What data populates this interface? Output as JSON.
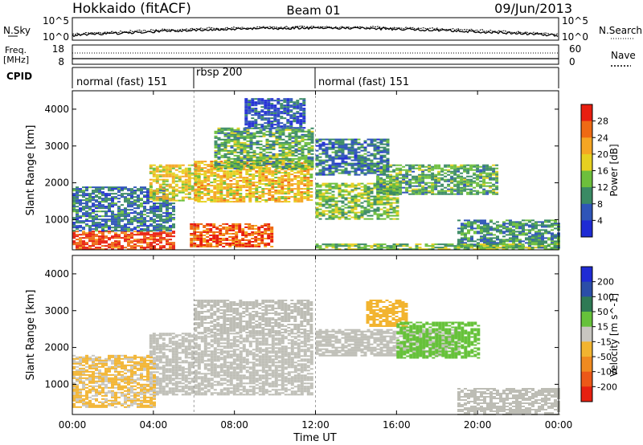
{
  "header": {
    "station": "Hokkaido (fitACF)",
    "beam": "Beam 01",
    "date": "09/Jun/2013"
  },
  "noise_panel": {
    "left_label": "N.Sky",
    "right_label": "N.Search",
    "left_ticks": [
      "10^5",
      "10^0"
    ],
    "right_ticks": [
      "10^5",
      "10^0"
    ]
  },
  "freq_panel": {
    "left_label_1": "Freq.",
    "left_label_2": "[MHz]",
    "right_label": "Nave",
    "left_ticks": [
      "18",
      "8"
    ],
    "right_ticks": [
      "60",
      "0"
    ]
  },
  "cpid_panel": {
    "label": "CPID",
    "modes": [
      {
        "name": "normal (fast) 151",
        "start_hour": 0,
        "end_hour": 6
      },
      {
        "name": "rbsp 200",
        "start_hour": 6,
        "end_hour": 12
      },
      {
        "name": "normal (fast) 151",
        "start_hour": 12,
        "end_hour": 24
      }
    ]
  },
  "x_axis": {
    "label": "Time UT",
    "range": [
      0,
      24
    ],
    "tick_labels": [
      "00:00",
      "04:00",
      "08:00",
      "12:00",
      "16:00",
      "20:00",
      "00:00"
    ]
  },
  "colors": {
    "power_scale": [
      "#1e2bd4",
      "#2f55b8",
      "#3a8a64",
      "#6dbf3c",
      "#e6d020",
      "#f5a623",
      "#ee6a14",
      "#e81e10"
    ],
    "velocity_scale": [
      "#1f2bd4",
      "#2b4ea8",
      "#2f7a55",
      "#66c23a",
      "#c8c6c0",
      "#f2b430",
      "#f08a20",
      "#ec5818",
      "#e62010"
    ],
    "ground_scatter": "#bdbdb5"
  },
  "chart_data": [
    {
      "type": "heatmap",
      "title": "",
      "xlabel": "Time UT",
      "ylabel": "Slant Range [km]",
      "xlim": [
        0,
        24
      ],
      "ylim": [
        180,
        4500
      ],
      "yticks": [
        1000,
        2000,
        3000,
        4000
      ],
      "colorbar_label": "Power [dB]",
      "colorbar_ticks": [
        4,
        8,
        12,
        16,
        20,
        24,
        28
      ],
      "colorbar_range": [
        0,
        32
      ],
      "echo_bands": [
        {
          "t0": 0.0,
          "t1": 5.0,
          "r0": 180,
          "r1": 700,
          "value": 28
        },
        {
          "t0": 0.0,
          "t1": 5.0,
          "r0": 700,
          "r1": 1900,
          "value": 8
        },
        {
          "t0": 3.8,
          "t1": 6.2,
          "r0": 1500,
          "r1": 2500,
          "value": 18
        },
        {
          "t0": 5.8,
          "t1": 9.8,
          "r0": 250,
          "r1": 900,
          "value": 27
        },
        {
          "t0": 6.0,
          "t1": 11.8,
          "r0": 1500,
          "r1": 2600,
          "value": 20
        },
        {
          "t0": 7.0,
          "t1": 11.8,
          "r0": 2400,
          "r1": 3500,
          "value": 12
        },
        {
          "t0": 8.5,
          "t1": 11.5,
          "r0": 3500,
          "r1": 4300,
          "value": 6
        },
        {
          "t0": 12.0,
          "t1": 16.0,
          "r0": 1000,
          "r1": 2000,
          "value": 14
        },
        {
          "t0": 12.0,
          "t1": 15.5,
          "r0": 2200,
          "r1": 3200,
          "value": 8
        },
        {
          "t0": 15.0,
          "t1": 21.0,
          "r0": 1700,
          "r1": 2500,
          "value": 12
        },
        {
          "t0": 19.0,
          "t1": 24.0,
          "r0": 250,
          "r1": 1000,
          "value": 10
        },
        {
          "t0": 12.0,
          "t1": 24.0,
          "r0": 180,
          "r1": 350,
          "value": 14
        }
      ]
    },
    {
      "type": "heatmap",
      "title": "",
      "xlabel": "Time UT",
      "ylabel": "Slant Range [km]",
      "xlim": [
        0,
        24
      ],
      "ylim": [
        180,
        4500
      ],
      "yticks": [
        1000,
        2000,
        3000,
        4000
      ],
      "colorbar_label": "Velocity [m s^-1]",
      "colorbar_ticks": [
        200,
        100,
        50,
        15,
        -15,
        -50,
        -100,
        -200
      ],
      "colorbar_range": [
        -250,
        250
      ],
      "echo_bands": [
        {
          "t0": 3.8,
          "t1": 11.8,
          "r0": 700,
          "r1": 2400,
          "value": 0
        },
        {
          "t0": 6.0,
          "t1": 11.8,
          "r0": 2400,
          "r1": 3300,
          "value": 0
        },
        {
          "t0": 12.0,
          "t1": 19.0,
          "r0": 1800,
          "r1": 2500,
          "value": 0
        },
        {
          "t0": 19.0,
          "t1": 24.0,
          "r0": 200,
          "r1": 900,
          "value": 0
        },
        {
          "t0": 14.5,
          "t1": 16.5,
          "r0": 2600,
          "r1": 3300,
          "value": -60
        },
        {
          "t0": 16.0,
          "t1": 20.0,
          "r0": 1700,
          "r1": 2700,
          "value": 40
        },
        {
          "t0": 0.0,
          "t1": 4.0,
          "r0": 400,
          "r1": 1800,
          "value": -30
        }
      ]
    }
  ]
}
